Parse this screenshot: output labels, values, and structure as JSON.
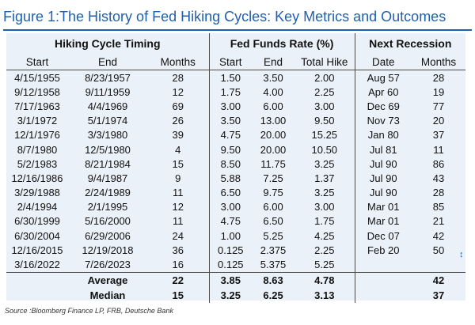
{
  "title": "Figure 1:The History of Fed Hiking Cycles: Key Metrics and Outcomes",
  "headers": {
    "group_timing": "Hiking Cycle Timing",
    "group_rate": "Fed Funds Rate (%)",
    "group_recession": "Next Recession",
    "start": "Start",
    "end": "End",
    "months": "Months",
    "rate_start": "Start",
    "rate_end": "End",
    "total_hike": "Total Hike",
    "rec_date": "Date",
    "rec_months": "Months"
  },
  "rows": [
    {
      "start": "4/15/1955",
      "end": "8/23/1957",
      "months": "28",
      "rate_start": "1.50",
      "rate_end": "3.50",
      "total_hike": "2.00",
      "rec_date": "Aug 57",
      "rec_months": "28"
    },
    {
      "start": "9/12/1958",
      "end": "9/11/1959",
      "months": "12",
      "rate_start": "1.75",
      "rate_end": "4.00",
      "total_hike": "2.25",
      "rec_date": "Apr 60",
      "rec_months": "19"
    },
    {
      "start": "7/17/1963",
      "end": "4/4/1969",
      "months": "69",
      "rate_start": "3.00",
      "rate_end": "6.00",
      "total_hike": "3.00",
      "rec_date": "Dec 69",
      "rec_months": "77"
    },
    {
      "start": "3/1/1972",
      "end": "5/1/1974",
      "months": "26",
      "rate_start": "3.50",
      "rate_end": "13.00",
      "total_hike": "9.50",
      "rec_date": "Nov 73",
      "rec_months": "20"
    },
    {
      "start": "12/1/1976",
      "end": "3/3/1980",
      "months": "39",
      "rate_start": "4.75",
      "rate_end": "20.00",
      "total_hike": "15.25",
      "rec_date": "Jan 80",
      "rec_months": "37"
    },
    {
      "start": "8/7/1980",
      "end": "12/5/1980",
      "months": "4",
      "rate_start": "9.50",
      "rate_end": "20.00",
      "total_hike": "10.50",
      "rec_date": "Jul 81",
      "rec_months": "11"
    },
    {
      "start": "5/2/1983",
      "end": "8/21/1984",
      "months": "15",
      "rate_start": "8.50",
      "rate_end": "11.75",
      "total_hike": "3.25",
      "rec_date": "Jul 90",
      "rec_months": "86"
    },
    {
      "start": "12/16/1986",
      "end": "9/4/1987",
      "months": "9",
      "rate_start": "5.88",
      "rate_end": "7.25",
      "total_hike": "1.37",
      "rec_date": "Jul 90",
      "rec_months": "43"
    },
    {
      "start": "3/29/1988",
      "end": "2/24/1989",
      "months": "11",
      "rate_start": "6.50",
      "rate_end": "9.75",
      "total_hike": "3.25",
      "rec_date": "Jul 90",
      "rec_months": "28"
    },
    {
      "start": "2/4/1994",
      "end": "2/1/1995",
      "months": "12",
      "rate_start": "3.00",
      "rate_end": "6.00",
      "total_hike": "3.00",
      "rec_date": "Mar 01",
      "rec_months": "85"
    },
    {
      "start": "6/30/1999",
      "end": "5/16/2000",
      "months": "11",
      "rate_start": "4.75",
      "rate_end": "6.50",
      "total_hike": "1.75",
      "rec_date": "Mar 01",
      "rec_months": "21"
    },
    {
      "start": "6/30/2004",
      "end": "6/29/2006",
      "months": "24",
      "rate_start": "1.00",
      "rate_end": "5.25",
      "total_hike": "4.25",
      "rec_date": "Dec 07",
      "rec_months": "42"
    },
    {
      "start": "12/16/2015",
      "end": "12/19/2018",
      "months": "36",
      "rate_start": "0.125",
      "rate_end": "2.375",
      "total_hike": "2.25",
      "rec_date": "Feb 20",
      "rec_months": "50"
    },
    {
      "start": "3/16/2022",
      "end": "7/26/2023",
      "months": "16",
      "rate_start": "0.125",
      "rate_end": "5.375",
      "total_hike": "5.25",
      "rec_date": "",
      "rec_months": ""
    }
  ],
  "summary": [
    {
      "label": "Average",
      "months": "22",
      "rate_start": "3.85",
      "rate_end": "8.63",
      "total_hike": "4.78",
      "rec_months": "42"
    },
    {
      "label": "Median",
      "months": "15",
      "rate_start": "3.25",
      "rate_end": "6.25",
      "total_hike": "3.13",
      "rec_months": "37"
    }
  ],
  "source": "Source :Bloomberg Finance LP, FRB, Deutsche Bank",
  "edge_mark": "↕",
  "colors": {
    "title": "#1f5fb0",
    "table_bg": "#eaf1f8",
    "rule": "#4a4a4a"
  }
}
